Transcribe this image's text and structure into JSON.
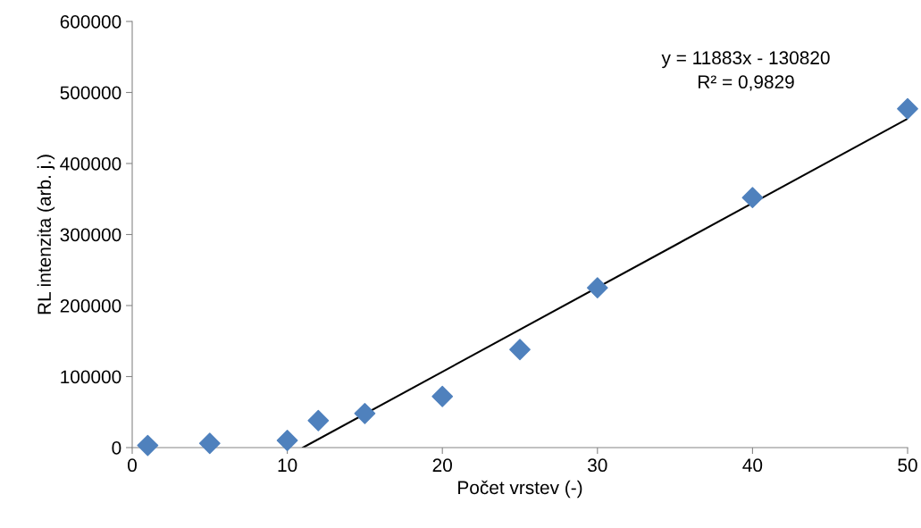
{
  "chart_data": {
    "type": "scatter",
    "xlabel": "Počet vrstev (-)",
    "ylabel": "RL intenzita (arb. j.)",
    "x": [
      1,
      5,
      10,
      12,
      15,
      20,
      25,
      30,
      40,
      50
    ],
    "series": [
      {
        "color": "#4f81bd",
        "marker": "diamond",
        "values": [
          3000,
          6000,
          10000,
          38000,
          48000,
          72000,
          138000,
          225000,
          352000,
          477000
        ]
      },
      {
        "type": "line",
        "color": "#000000",
        "marker": "none",
        "line_style": "solid",
        "x": [
          11.01,
          50
        ],
        "values": [
          0,
          463000
        ]
      }
    ],
    "annotations": [
      "y = 11883x - 130820\nR² = 0,9829"
    ],
    "xlim": [
      0,
      50
    ],
    "xticks": [
      0,
      10,
      20,
      30,
      40,
      50
    ],
    "ylim": [
      0,
      600000
    ],
    "yticks": [
      0,
      100000,
      200000,
      300000,
      400000,
      500000,
      600000
    ],
    "grid": false,
    "legend": false
  }
}
